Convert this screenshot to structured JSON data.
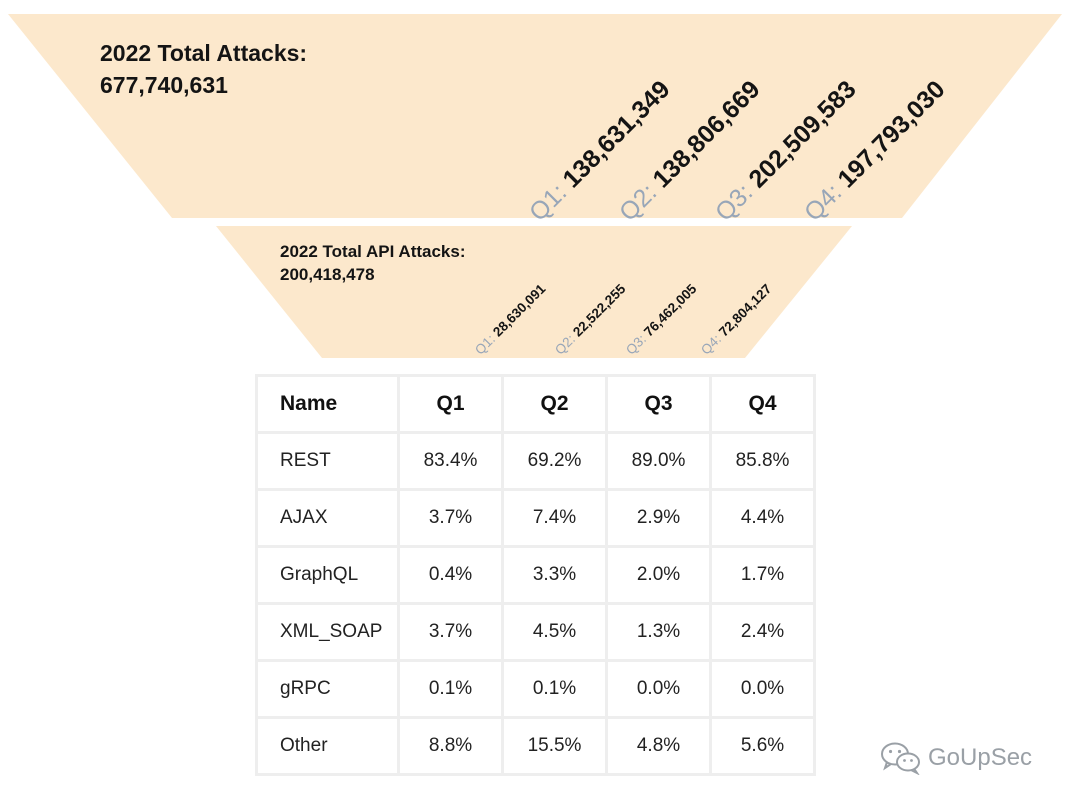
{
  "chart_data": [
    {
      "type": "funnel",
      "stages": [
        {
          "title_line1": "2022 Total Attacks:",
          "title_line2": "677,740,631",
          "total": 677740631,
          "quarters": [
            {
              "prefix": "Q1:",
              "value_text": "138,631,349",
              "value": 138631349
            },
            {
              "prefix": "Q2:",
              "value_text": "138,806,669",
              "value": 138806669
            },
            {
              "prefix": "Q3:",
              "value_text": "202,509,583",
              "value": 202509583
            },
            {
              "prefix": "Q4:",
              "value_text": "197,793,030",
              "value": 197793030
            }
          ]
        },
        {
          "title_line1": "2022 Total API Attacks:",
          "title_line2": "200,418,478",
          "total": 200418478,
          "quarters": [
            {
              "prefix": "Q1:",
              "value_text": "28,630,091",
              "value": 28630091
            },
            {
              "prefix": "Q2:",
              "value_text": "22,522,255",
              "value": 22522255
            },
            {
              "prefix": "Q3:",
              "value_text": "76,462,005",
              "value": 76462005
            },
            {
              "prefix": "Q4:",
              "value_text": "72,804,127",
              "value": 72804127
            }
          ]
        }
      ]
    },
    {
      "type": "table",
      "headers": [
        "Name",
        "Q1",
        "Q2",
        "Q3",
        "Q4"
      ],
      "rows": [
        [
          "REST",
          "83.4%",
          "69.2%",
          "89.0%",
          "85.8%"
        ],
        [
          "AJAX",
          "3.7%",
          "7.4%",
          "2.9%",
          "4.4%"
        ],
        [
          "GraphQL",
          "0.4%",
          "3.3%",
          "2.0%",
          "1.7%"
        ],
        [
          "XML_SOAP",
          "3.7%",
          "4.5%",
          "1.3%",
          "2.4%"
        ],
        [
          "gRPC",
          "0.1%",
          "0.1%",
          "0.0%",
          "0.0%"
        ],
        [
          "Other",
          "8.8%",
          "15.5%",
          "4.8%",
          "5.6%"
        ]
      ]
    }
  ],
  "colors": {
    "funnel_fill": "#fce8cc",
    "quarter_prefix": "#98a6b8",
    "table_border": "#eeeeee"
  },
  "watermark": {
    "icon": "wechat-icon",
    "text": "GoUpSec"
  }
}
